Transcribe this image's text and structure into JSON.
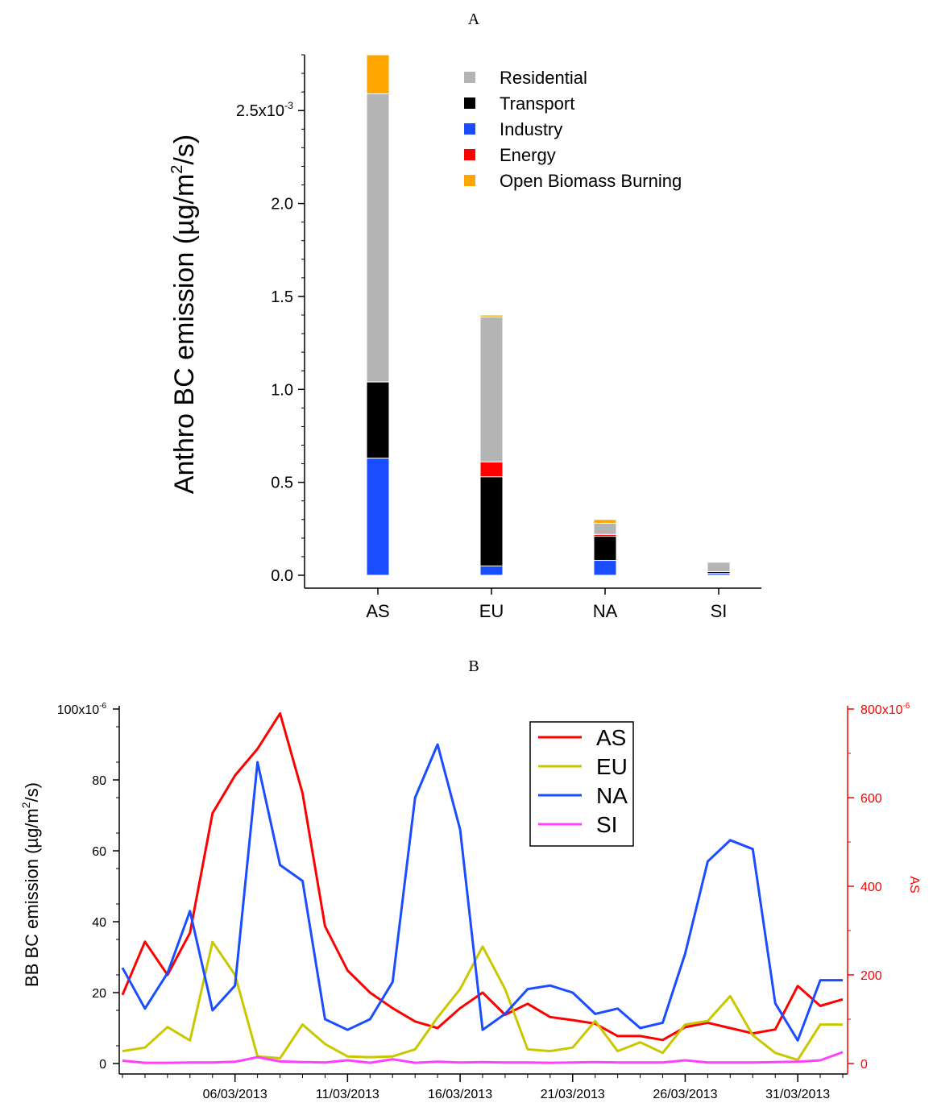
{
  "chart_data": [
    {
      "panel_label": "A",
      "type": "bar",
      "stacked": true,
      "ylabel_main": "Anthro BC emission (µg/m",
      "ylabel_sup": "2",
      "ylabel_tail": "/s)",
      "ylim": [
        0,
        0.0028
      ],
      "yticks": [
        {
          "value": 0.0,
          "label": "0.0"
        },
        {
          "value": 0.0005,
          "label": "0.5"
        },
        {
          "value": 0.001,
          "label": "1.0"
        },
        {
          "value": 0.0015,
          "label": "1.5"
        },
        {
          "value": 0.002,
          "label": "2.0"
        },
        {
          "value": 0.0025,
          "label": "2.5x10",
          "sup": "-3"
        }
      ],
      "categories": [
        "AS",
        "EU",
        "NA",
        "SI"
      ],
      "legend_position": "top-right",
      "series": [
        {
          "name": "Industry",
          "color": "#1a4dff",
          "values": [
            0.00063,
            5e-05,
            8e-05,
            1e-05
          ]
        },
        {
          "name": "Transport",
          "color": "#000000",
          "values": [
            0.00041,
            0.00048,
            0.00013,
            1e-05
          ]
        },
        {
          "name": "Energy",
          "color": "#ff0000",
          "values": [
            0.0,
            8e-05,
            1e-05,
            0.0
          ]
        },
        {
          "name": "Residential",
          "color": "#b4b4b4",
          "values": [
            0.00155,
            0.00078,
            6e-05,
            5e-05
          ]
        },
        {
          "name": "Open Biomass Burning",
          "color": "#ffa500",
          "values": [
            0.00021,
            1e-05,
            2e-05,
            0.0
          ]
        }
      ],
      "legend_order": [
        "Residential",
        "Transport",
        "Industry",
        "Energy",
        "Open Biomass Burning"
      ]
    },
    {
      "panel_label": "B",
      "type": "line",
      "ylabel_main": "BB BC emission (µg/m",
      "ylabel_sup": "2",
      "ylabel_tail": "/s)",
      "y2label": "AS",
      "ylim": [
        0,
        0.0001
      ],
      "y2lim": [
        0,
        0.0008
      ],
      "yticks": [
        {
          "value": 0,
          "label": "0"
        },
        {
          "value": 2e-05,
          "label": "20"
        },
        {
          "value": 4e-05,
          "label": "40"
        },
        {
          "value": 6e-05,
          "label": "60"
        },
        {
          "value": 8e-05,
          "label": "80"
        },
        {
          "value": 0.0001,
          "label": "100x10",
          "sup": "-6"
        }
      ],
      "y2ticks": [
        {
          "value": 0,
          "label": "0"
        },
        {
          "value": 0.0002,
          "label": "200"
        },
        {
          "value": 0.0004,
          "label": "400"
        },
        {
          "value": 0.0006,
          "label": "600"
        },
        {
          "value": 0.0008,
          "label": "800x10",
          "sup": "-6"
        }
      ],
      "xticks": [
        "06/03/2013",
        "11/03/2013",
        "16/03/2013",
        "21/03/2013",
        "26/03/2013",
        "31/03/2013"
      ],
      "x": [
        "01/03",
        "02/03",
        "03/03",
        "04/03",
        "05/03",
        "06/03",
        "07/03",
        "08/03",
        "09/03",
        "10/03",
        "11/03",
        "12/03",
        "13/03",
        "14/03",
        "15/03",
        "16/03",
        "17/03",
        "18/03",
        "19/03",
        "20/03",
        "21/03",
        "22/03",
        "23/03",
        "24/03",
        "25/03",
        "26/03",
        "27/03",
        "28/03",
        "29/03",
        "30/03",
        "31/03",
        "01/04",
        "02/04"
      ],
      "legend_position": "top-center",
      "series": [
        {
          "name": "AS",
          "axis": "right",
          "color": "#ff0000",
          "values": [
            0.000155,
            0.000275,
            0.0002,
            0.000295,
            0.000565,
            0.00065,
            0.00071,
            0.00079,
            0.00061,
            0.00031,
            0.00021,
            0.00016,
            0.000125,
            9.5e-05,
            8e-05,
            0.000125,
            0.00016,
            0.00011,
            0.000135,
            0.000105,
            9.8e-05,
            9e-05,
            6.2e-05,
            6.2e-05,
            5.3e-05,
            8.2e-05,
            9.2e-05,
            8e-05,
            6.8e-05,
            7.7e-05,
            0.000175,
            0.00013,
            0.000145
          ]
        },
        {
          "name": "EU",
          "axis": "left",
          "color": "#c8c800",
          "values": [
            3.5e-06,
            4.5e-06,
            1.03e-05,
            6.5e-06,
            3.43e-05,
            2.5e-05,
            2e-06,
            1.5e-06,
            1.1e-05,
            5.5e-06,
            2e-06,
            1.8e-06,
            2e-06,
            4e-06,
            1.3e-05,
            2.1e-05,
            3.3e-05,
            2.1e-05,
            4e-06,
            3.5e-06,
            4.5e-06,
            1.2e-05,
            3.5e-06,
            6e-06,
            3e-06,
            1.1e-05,
            1.2e-05,
            1.9e-05,
            8e-06,
            3e-06,
            1e-06,
            1.1e-05,
            1.1e-05
          ]
        },
        {
          "name": "NA",
          "axis": "left",
          "color": "#1a4dff",
          "values": [
            2.7e-05,
            1.55e-05,
            2.55e-05,
            4.3e-05,
            1.5e-05,
            2.2e-05,
            8.5e-05,
            5.6e-05,
            5.15e-05,
            1.25e-05,
            9.5e-06,
            1.25e-05,
            2.3e-05,
            7.5e-05,
            9e-05,
            6.6e-05,
            9.5e-06,
            1.4e-05,
            2.1e-05,
            2.2e-05,
            2e-05,
            1.4e-05,
            1.55e-05,
            1e-05,
            1.15e-05,
            3.1e-05,
            5.7e-05,
            6.3e-05,
            6.05e-05,
            1.7e-05,
            6.5e-06,
            2.35e-05,
            2.35e-05
          ]
        },
        {
          "name": "SI",
          "axis": "left",
          "color": "#ff40ff",
          "values": [
            8e-07,
            2e-07,
            2e-07,
            3e-07,
            3e-07,
            5e-07,
            1.8e-06,
            6e-07,
            4e-07,
            3e-07,
            9e-07,
            2e-07,
            1.2e-06,
            2e-07,
            5e-07,
            3e-07,
            4e-07,
            3e-07,
            3e-07,
            2e-07,
            3e-07,
            4e-07,
            3e-07,
            3e-07,
            3e-07,
            9e-07,
            3e-07,
            3e-07,
            3e-07,
            4e-07,
            5e-07,
            9e-07,
            3.2e-06
          ]
        }
      ]
    }
  ]
}
